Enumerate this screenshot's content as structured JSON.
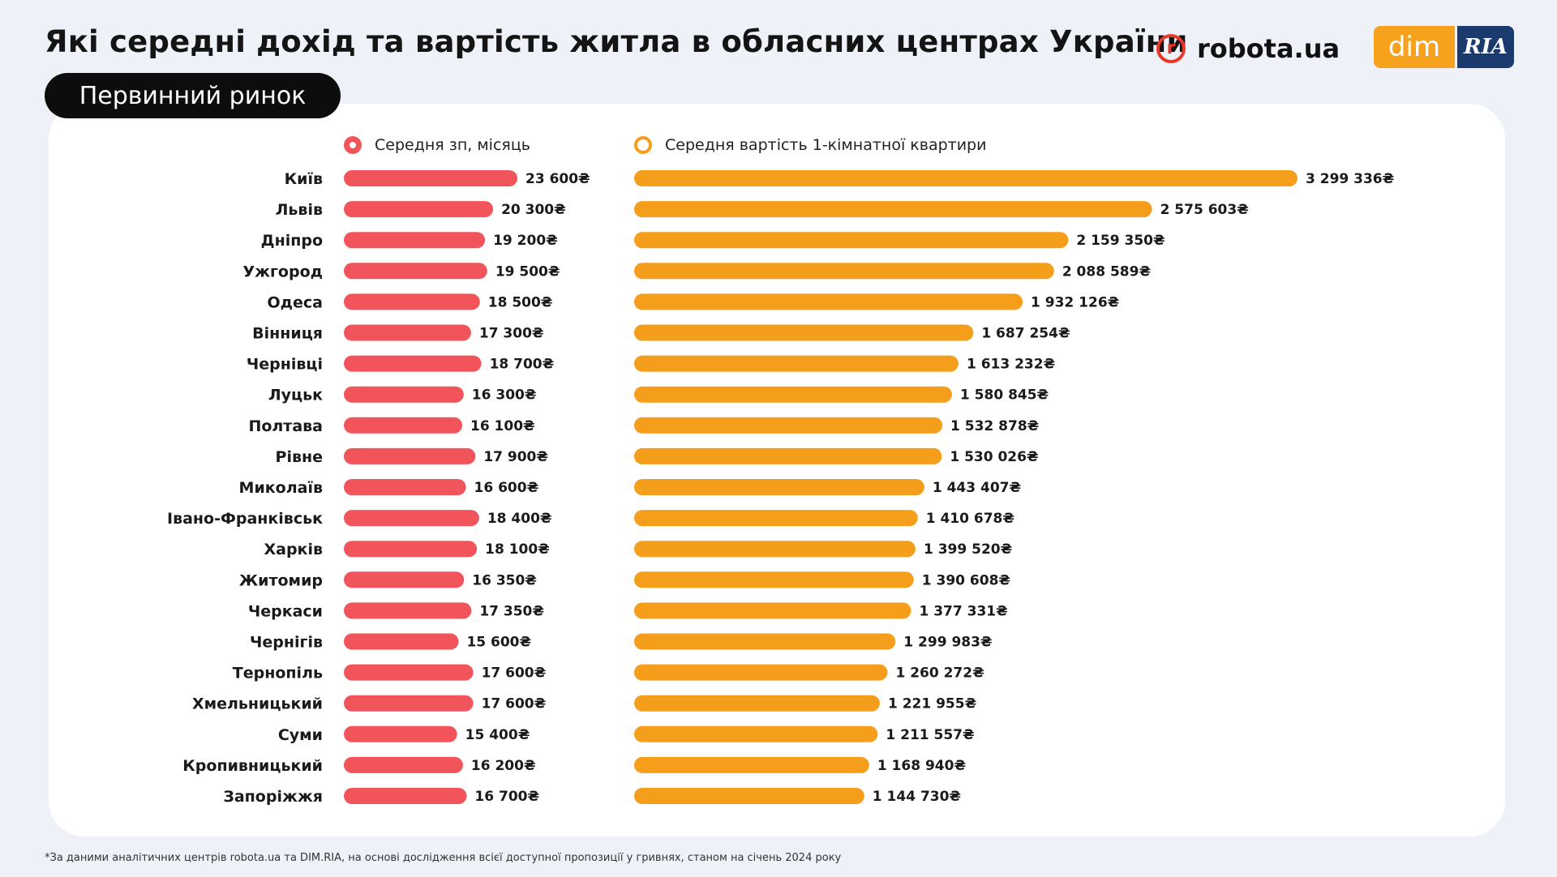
{
  "header": {
    "title": "Які середні дохід та вартість житла в обласних центрах України",
    "market_label": "Первинний ринок"
  },
  "logos": {
    "robota_mark": "r",
    "robota_text": "robota.ua",
    "dim_text": "dim",
    "ria_text": "RIA"
  },
  "colors": {
    "salary_bar": "#f2545b",
    "price_bar": "#f59e1b"
  },
  "legend": {
    "salary": "Середня зп, місяць",
    "price": "Середня вартість 1-кімнатної квартири"
  },
  "chart_data": {
    "type": "bar",
    "orientation": "horizontal",
    "categories": [
      "Київ",
      "Львів",
      "Дніпро",
      "Ужгород",
      "Одеса",
      "Вінниця",
      "Чернівці",
      "Луцьк",
      "Полтава",
      "Рівне",
      "Миколаїв",
      "Івано-Франківськ",
      "Харків",
      "Житомир",
      "Черкаси",
      "Чернігів",
      "Тернопіль",
      "Хмельницький",
      "Суми",
      "Кропивницький",
      "Запоріжжя"
    ],
    "series": [
      {
        "name": "Середня зп, місяць",
        "values": [
          23600,
          20300,
          19200,
          19500,
          18500,
          17300,
          18700,
          16300,
          16100,
          17900,
          16600,
          18400,
          18100,
          16350,
          17350,
          15600,
          17600,
          17600,
          15400,
          16200,
          16700
        ],
        "labels": [
          "23 600₴",
          "20 300₴",
          "19 200₴",
          "19 500₴",
          "18 500₴",
          "17 300₴",
          "18 700₴",
          "16 300₴",
          "16 100₴",
          "17 900₴",
          "16 600₴",
          "18 400₴",
          "18 100₴",
          "16 350₴",
          "17 350₴",
          "15 600₴",
          "17 600₴",
          "17 600₴",
          "15 400₴",
          "16 200₴",
          "16 700₴"
        ]
      },
      {
        "name": "Середня вартість 1-кімнатної квартири",
        "values": [
          3299336,
          2575603,
          2159350,
          2088589,
          1932126,
          1687254,
          1613232,
          1580845,
          1532878,
          1530026,
          1443407,
          1410678,
          1399520,
          1390608,
          1377331,
          1299983,
          1260272,
          1221955,
          1211557,
          1168940,
          1144730
        ],
        "labels": [
          "3 299 336₴",
          "2 575 603₴",
          "2 159 350₴",
          "2 088 589₴",
          "1 932 126₴",
          "1 687 254₴",
          "1 613 232₴",
          "1 580 845₴",
          "1 532 878₴",
          "1 530 026₴",
          "1 443 407₴",
          "1 410 678₴",
          "1 399 520₴",
          "1 390 608₴",
          "1 377 331₴",
          "1 299 983₴",
          "1 260 272₴",
          "1 221 955₴",
          "1 211 557₴",
          "1 168 940₴",
          "1 144 730₴"
        ]
      }
    ],
    "xlabel": "",
    "ylabel": "",
    "legend_position": "top",
    "grid": false
  },
  "footnote": "*За даними аналітичних центрів robota.ua та DIM.RIA, на основі дослідження всієї доступної пропозиції у гривнях, станом на січень 2024 року"
}
